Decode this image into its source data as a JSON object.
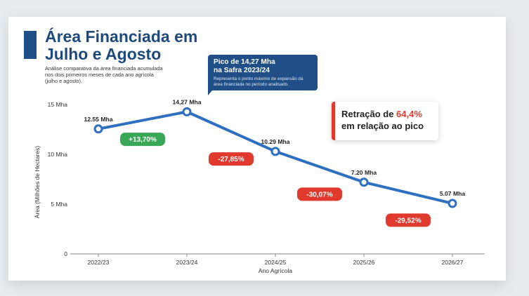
{
  "header": {
    "title": "Área Financiada em Julho e Agosto",
    "subtitle": "Análise comparativa da área financiada acumulada nos dois primeiros meses de cada ano agrícola (julho e agosto)."
  },
  "peak_callout": {
    "heading": "Pico de 14,27 Mha\nna Safra 2023/24",
    "detail": "Representa o ponto máximo de expansão da área financiada no período analisado."
  },
  "retraction_callout": {
    "prefix": "Retração de ",
    "highlight": "64,4%",
    "suffix": "em relação ao pico"
  },
  "colors": {
    "line": "#2f6fbf",
    "positive": "#3aa757",
    "negative": "#e03a2f",
    "title": "#1e4a7a"
  },
  "chart_data": {
    "type": "line",
    "categories": [
      "2022/23",
      "2023/24",
      "2024/25",
      "2025/26",
      "2026/27"
    ],
    "values": [
      12.55,
      14.27,
      10.29,
      7.2,
      5.07
    ],
    "point_labels": [
      "12.55 Mha",
      "14,27 Mha",
      "10.29 Mha",
      "7.20 Mha",
      "5.07 Mha"
    ],
    "changes": [
      "+13,70%",
      "-27,85%",
      "-30,07%",
      "-29,52%"
    ],
    "xlabel": "Ano Agrícola",
    "ylabel": "Área (Milhões de Hectares)",
    "ylim": [
      0,
      15
    ],
    "yticks": [
      0,
      5,
      10,
      15
    ],
    "ytick_labels": [
      "0",
      "5 Mha",
      "10 Mha",
      "15 Mha"
    ],
    "grid": false,
    "legend": "none"
  }
}
